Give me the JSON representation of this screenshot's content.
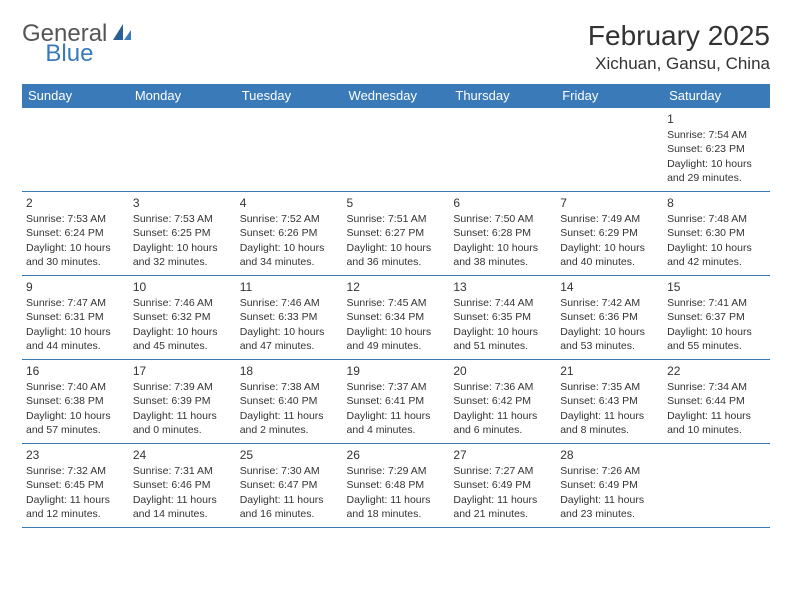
{
  "logo": {
    "text1": "General",
    "text2": "Blue"
  },
  "title": "February 2025",
  "location": "Xichuan, Gansu, China",
  "colors": {
    "header_bg": "#3a7ab8",
    "header_text": "#ffffff",
    "border": "#3a7ab8",
    "text": "#333333",
    "background": "#ffffff"
  },
  "weekdays": [
    "Sunday",
    "Monday",
    "Tuesday",
    "Wednesday",
    "Thursday",
    "Friday",
    "Saturday"
  ],
  "weeks": [
    [
      null,
      null,
      null,
      null,
      null,
      null,
      {
        "n": "1",
        "sr": "Sunrise: 7:54 AM",
        "ss": "Sunset: 6:23 PM",
        "dl": "Daylight: 10 hours and 29 minutes."
      }
    ],
    [
      {
        "n": "2",
        "sr": "Sunrise: 7:53 AM",
        "ss": "Sunset: 6:24 PM",
        "dl": "Daylight: 10 hours and 30 minutes."
      },
      {
        "n": "3",
        "sr": "Sunrise: 7:53 AM",
        "ss": "Sunset: 6:25 PM",
        "dl": "Daylight: 10 hours and 32 minutes."
      },
      {
        "n": "4",
        "sr": "Sunrise: 7:52 AM",
        "ss": "Sunset: 6:26 PM",
        "dl": "Daylight: 10 hours and 34 minutes."
      },
      {
        "n": "5",
        "sr": "Sunrise: 7:51 AM",
        "ss": "Sunset: 6:27 PM",
        "dl": "Daylight: 10 hours and 36 minutes."
      },
      {
        "n": "6",
        "sr": "Sunrise: 7:50 AM",
        "ss": "Sunset: 6:28 PM",
        "dl": "Daylight: 10 hours and 38 minutes."
      },
      {
        "n": "7",
        "sr": "Sunrise: 7:49 AM",
        "ss": "Sunset: 6:29 PM",
        "dl": "Daylight: 10 hours and 40 minutes."
      },
      {
        "n": "8",
        "sr": "Sunrise: 7:48 AM",
        "ss": "Sunset: 6:30 PM",
        "dl": "Daylight: 10 hours and 42 minutes."
      }
    ],
    [
      {
        "n": "9",
        "sr": "Sunrise: 7:47 AM",
        "ss": "Sunset: 6:31 PM",
        "dl": "Daylight: 10 hours and 44 minutes."
      },
      {
        "n": "10",
        "sr": "Sunrise: 7:46 AM",
        "ss": "Sunset: 6:32 PM",
        "dl": "Daylight: 10 hours and 45 minutes."
      },
      {
        "n": "11",
        "sr": "Sunrise: 7:46 AM",
        "ss": "Sunset: 6:33 PM",
        "dl": "Daylight: 10 hours and 47 minutes."
      },
      {
        "n": "12",
        "sr": "Sunrise: 7:45 AM",
        "ss": "Sunset: 6:34 PM",
        "dl": "Daylight: 10 hours and 49 minutes."
      },
      {
        "n": "13",
        "sr": "Sunrise: 7:44 AM",
        "ss": "Sunset: 6:35 PM",
        "dl": "Daylight: 10 hours and 51 minutes."
      },
      {
        "n": "14",
        "sr": "Sunrise: 7:42 AM",
        "ss": "Sunset: 6:36 PM",
        "dl": "Daylight: 10 hours and 53 minutes."
      },
      {
        "n": "15",
        "sr": "Sunrise: 7:41 AM",
        "ss": "Sunset: 6:37 PM",
        "dl": "Daylight: 10 hours and 55 minutes."
      }
    ],
    [
      {
        "n": "16",
        "sr": "Sunrise: 7:40 AM",
        "ss": "Sunset: 6:38 PM",
        "dl": "Daylight: 10 hours and 57 minutes."
      },
      {
        "n": "17",
        "sr": "Sunrise: 7:39 AM",
        "ss": "Sunset: 6:39 PM",
        "dl": "Daylight: 11 hours and 0 minutes."
      },
      {
        "n": "18",
        "sr": "Sunrise: 7:38 AM",
        "ss": "Sunset: 6:40 PM",
        "dl": "Daylight: 11 hours and 2 minutes."
      },
      {
        "n": "19",
        "sr": "Sunrise: 7:37 AM",
        "ss": "Sunset: 6:41 PM",
        "dl": "Daylight: 11 hours and 4 minutes."
      },
      {
        "n": "20",
        "sr": "Sunrise: 7:36 AM",
        "ss": "Sunset: 6:42 PM",
        "dl": "Daylight: 11 hours and 6 minutes."
      },
      {
        "n": "21",
        "sr": "Sunrise: 7:35 AM",
        "ss": "Sunset: 6:43 PM",
        "dl": "Daylight: 11 hours and 8 minutes."
      },
      {
        "n": "22",
        "sr": "Sunrise: 7:34 AM",
        "ss": "Sunset: 6:44 PM",
        "dl": "Daylight: 11 hours and 10 minutes."
      }
    ],
    [
      {
        "n": "23",
        "sr": "Sunrise: 7:32 AM",
        "ss": "Sunset: 6:45 PM",
        "dl": "Daylight: 11 hours and 12 minutes."
      },
      {
        "n": "24",
        "sr": "Sunrise: 7:31 AM",
        "ss": "Sunset: 6:46 PM",
        "dl": "Daylight: 11 hours and 14 minutes."
      },
      {
        "n": "25",
        "sr": "Sunrise: 7:30 AM",
        "ss": "Sunset: 6:47 PM",
        "dl": "Daylight: 11 hours and 16 minutes."
      },
      {
        "n": "26",
        "sr": "Sunrise: 7:29 AM",
        "ss": "Sunset: 6:48 PM",
        "dl": "Daylight: 11 hours and 18 minutes."
      },
      {
        "n": "27",
        "sr": "Sunrise: 7:27 AM",
        "ss": "Sunset: 6:49 PM",
        "dl": "Daylight: 11 hours and 21 minutes."
      },
      {
        "n": "28",
        "sr": "Sunrise: 7:26 AM",
        "ss": "Sunset: 6:49 PM",
        "dl": "Daylight: 11 hours and 23 minutes."
      },
      null
    ]
  ]
}
